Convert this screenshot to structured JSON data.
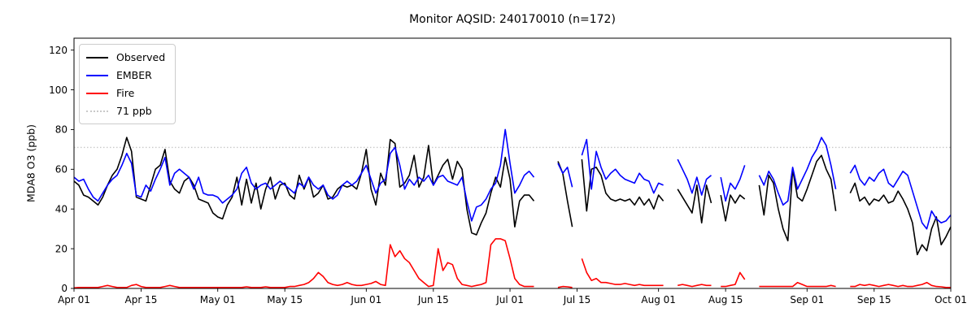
{
  "header": {
    "title": "Monitor AQSID: 240170010 (n=172)"
  },
  "chart_data": {
    "type": "line",
    "title": "Monitor AQSID: 240170010 (n=172)",
    "xlabel": "",
    "ylabel": "MDA8 O3 (ppb)",
    "ylim": [
      0,
      126
    ],
    "yticks": [
      0,
      20,
      40,
      60,
      80,
      100,
      120
    ],
    "grid": false,
    "n_days": 184,
    "x_start": "Apr 01",
    "x_end": "Oct 01",
    "xticks": [
      {
        "day": 0,
        "label": "Apr 01"
      },
      {
        "day": 14,
        "label": "Apr 15"
      },
      {
        "day": 30,
        "label": "May 01"
      },
      {
        "day": 44,
        "label": "May 15"
      },
      {
        "day": 61,
        "label": "Jun 01"
      },
      {
        "day": 75,
        "label": "Jun 15"
      },
      {
        "day": 91,
        "label": "Jul 01"
      },
      {
        "day": 105,
        "label": "Jul 15"
      },
      {
        "day": 122,
        "label": "Aug 01"
      },
      {
        "day": 136,
        "label": "Aug 15"
      },
      {
        "day": 153,
        "label": "Sep 01"
      },
      {
        "day": 167,
        "label": "Sep 15"
      },
      {
        "day": 183,
        "label": "Oct 01"
      }
    ],
    "threshold": {
      "value": 71,
      "label": "71 ppb",
      "color": "#c9c9c9",
      "style": "dotted"
    },
    "legend": {
      "position": "upper-left",
      "items": [
        {
          "label": "Observed",
          "color": "#000000",
          "style": "solid"
        },
        {
          "label": "EMBER",
          "color": "#0000ff",
          "style": "solid"
        },
        {
          "label": "Fire",
          "color": "#ff0000",
          "style": "solid"
        },
        {
          "label": "71 ppb",
          "color": "#c9c9c9",
          "style": "dotted"
        }
      ]
    },
    "series": [
      {
        "name": "Observed",
        "color": "#000000",
        "values": [
          54,
          52,
          47,
          46,
          44,
          42,
          46,
          52,
          57,
          60,
          67,
          76,
          69,
          46,
          45,
          44,
          52,
          60,
          62,
          70,
          54,
          50,
          48,
          54,
          56,
          52,
          45,
          44,
          43,
          38,
          36,
          35,
          42,
          46,
          56,
          42,
          55,
          43,
          53,
          40,
          50,
          56,
          45,
          52,
          53,
          47,
          45,
          57,
          50,
          56,
          46,
          48,
          52,
          45,
          46,
          50,
          52,
          51,
          52,
          50,
          58,
          70,
          50,
          42,
          58,
          52,
          75,
          73,
          51,
          53,
          57,
          67,
          51,
          56,
          72,
          52,
          57,
          62,
          65,
          55,
          64,
          60,
          40,
          28,
          27,
          33,
          38,
          48,
          56,
          51,
          66,
          55,
          31,
          44,
          47,
          47,
          44,
          null,
          null,
          null,
          null,
          64,
          58,
          44,
          31,
          null,
          65,
          39,
          60,
          61,
          57,
          48,
          45,
          44,
          45,
          44,
          45,
          42,
          46,
          42,
          45,
          40,
          47,
          44,
          null,
          null,
          50,
          46,
          42,
          38,
          52,
          33,
          52,
          43,
          null,
          47,
          34,
          47,
          43,
          47,
          45,
          null,
          null,
          52,
          37,
          57,
          53,
          40,
          30,
          24,
          60,
          46,
          44,
          50,
          57,
          64,
          67,
          60,
          55,
          39,
          null,
          null,
          48,
          53,
          44,
          46,
          42,
          45,
          44,
          47,
          43,
          44,
          49,
          45,
          40,
          33,
          17,
          22,
          19,
          30,
          36,
          22,
          26,
          31
        ]
      },
      {
        "name": "EMBER",
        "color": "#0000ff",
        "values": [
          56,
          54,
          55,
          50,
          46,
          44,
          48,
          52,
          55,
          57,
          62,
          68,
          63,
          47,
          46,
          52,
          49,
          55,
          60,
          66,
          52,
          58,
          60,
          58,
          56,
          50,
          56,
          48,
          47,
          47,
          46,
          43,
          45,
          47,
          50,
          58,
          61,
          53,
          50,
          52,
          53,
          50,
          52,
          54,
          52,
          50,
          48,
          53,
          51,
          56,
          52,
          50,
          52,
          47,
          45,
          47,
          52,
          54,
          52,
          54,
          58,
          62,
          55,
          48,
          53,
          55,
          68,
          71,
          62,
          50,
          55,
          52,
          56,
          54,
          57,
          52,
          56,
          57,
          54,
          53,
          52,
          56,
          44,
          34,
          41,
          42,
          45,
          50,
          53,
          62,
          80,
          63,
          48,
          52,
          57,
          59,
          56,
          null,
          null,
          null,
          null,
          63,
          58,
          61,
          51,
          null,
          67,
          75,
          50,
          69,
          61,
          55,
          58,
          60,
          57,
          55,
          54,
          53,
          58,
          55,
          54,
          48,
          53,
          52,
          null,
          null,
          65,
          60,
          55,
          48,
          56,
          47,
          55,
          57,
          null,
          56,
          44,
          53,
          50,
          55,
          62,
          null,
          null,
          57,
          52,
          59,
          55,
          48,
          42,
          44,
          61,
          50,
          55,
          60,
          66,
          70,
          76,
          72,
          62,
          50,
          null,
          null,
          58,
          62,
          55,
          52,
          56,
          54,
          58,
          60,
          53,
          51,
          55,
          59,
          57,
          49,
          41,
          33,
          30,
          39,
          35,
          33,
          34,
          37
        ]
      },
      {
        "name": "Fire",
        "color": "#ff0000",
        "values": [
          0.3,
          0.5,
          0.5,
          0.5,
          0.5,
          0.5,
          1,
          1.5,
          1,
          0.5,
          0.5,
          0.5,
          1.5,
          2,
          1,
          0.5,
          0.5,
          0.5,
          0.5,
          1,
          1.5,
          1,
          0.5,
          0.5,
          0.5,
          0.5,
          0.5,
          0.5,
          0.5,
          0.5,
          0.5,
          0.5,
          0.5,
          0.5,
          0.5,
          0.5,
          0.8,
          0.5,
          0.5,
          0.5,
          0.8,
          0.5,
          0.5,
          0.5,
          0.5,
          1,
          1,
          1.5,
          2,
          3,
          5,
          8,
          6,
          3,
          2,
          1.5,
          2,
          3,
          2,
          1.5,
          1.5,
          2,
          2.5,
          3.5,
          2,
          1.5,
          22,
          16,
          19,
          15,
          13,
          9,
          5,
          3,
          1,
          1.5,
          20,
          9,
          13,
          12,
          5,
          2,
          1.5,
          1,
          1.5,
          2,
          3,
          22,
          25,
          25,
          24,
          15,
          5,
          2,
          1,
          1,
          1,
          null,
          null,
          null,
          null,
          0.5,
          1,
          0.8,
          0.5,
          null,
          15,
          8,
          4,
          5,
          3,
          3,
          2.5,
          2,
          2,
          2.5,
          2,
          1.5,
          2,
          1.5,
          1.5,
          1.5,
          1.5,
          1.5,
          null,
          null,
          1.5,
          2,
          1.5,
          1,
          1.5,
          2,
          1.5,
          1.5,
          null,
          1,
          1,
          1.5,
          2,
          8,
          4.5,
          null,
          null,
          1,
          1,
          1,
          1,
          1,
          1,
          1,
          1,
          3,
          2,
          1,
          1,
          1,
          1,
          1,
          1.5,
          1,
          null,
          null,
          1,
          1,
          2,
          1.5,
          2,
          1.5,
          1,
          1.5,
          2,
          1.5,
          1,
          1.5,
          1,
          1,
          1.5,
          2,
          3,
          1.5,
          1,
          0.8,
          0.5,
          0.5
        ]
      }
    ]
  }
}
